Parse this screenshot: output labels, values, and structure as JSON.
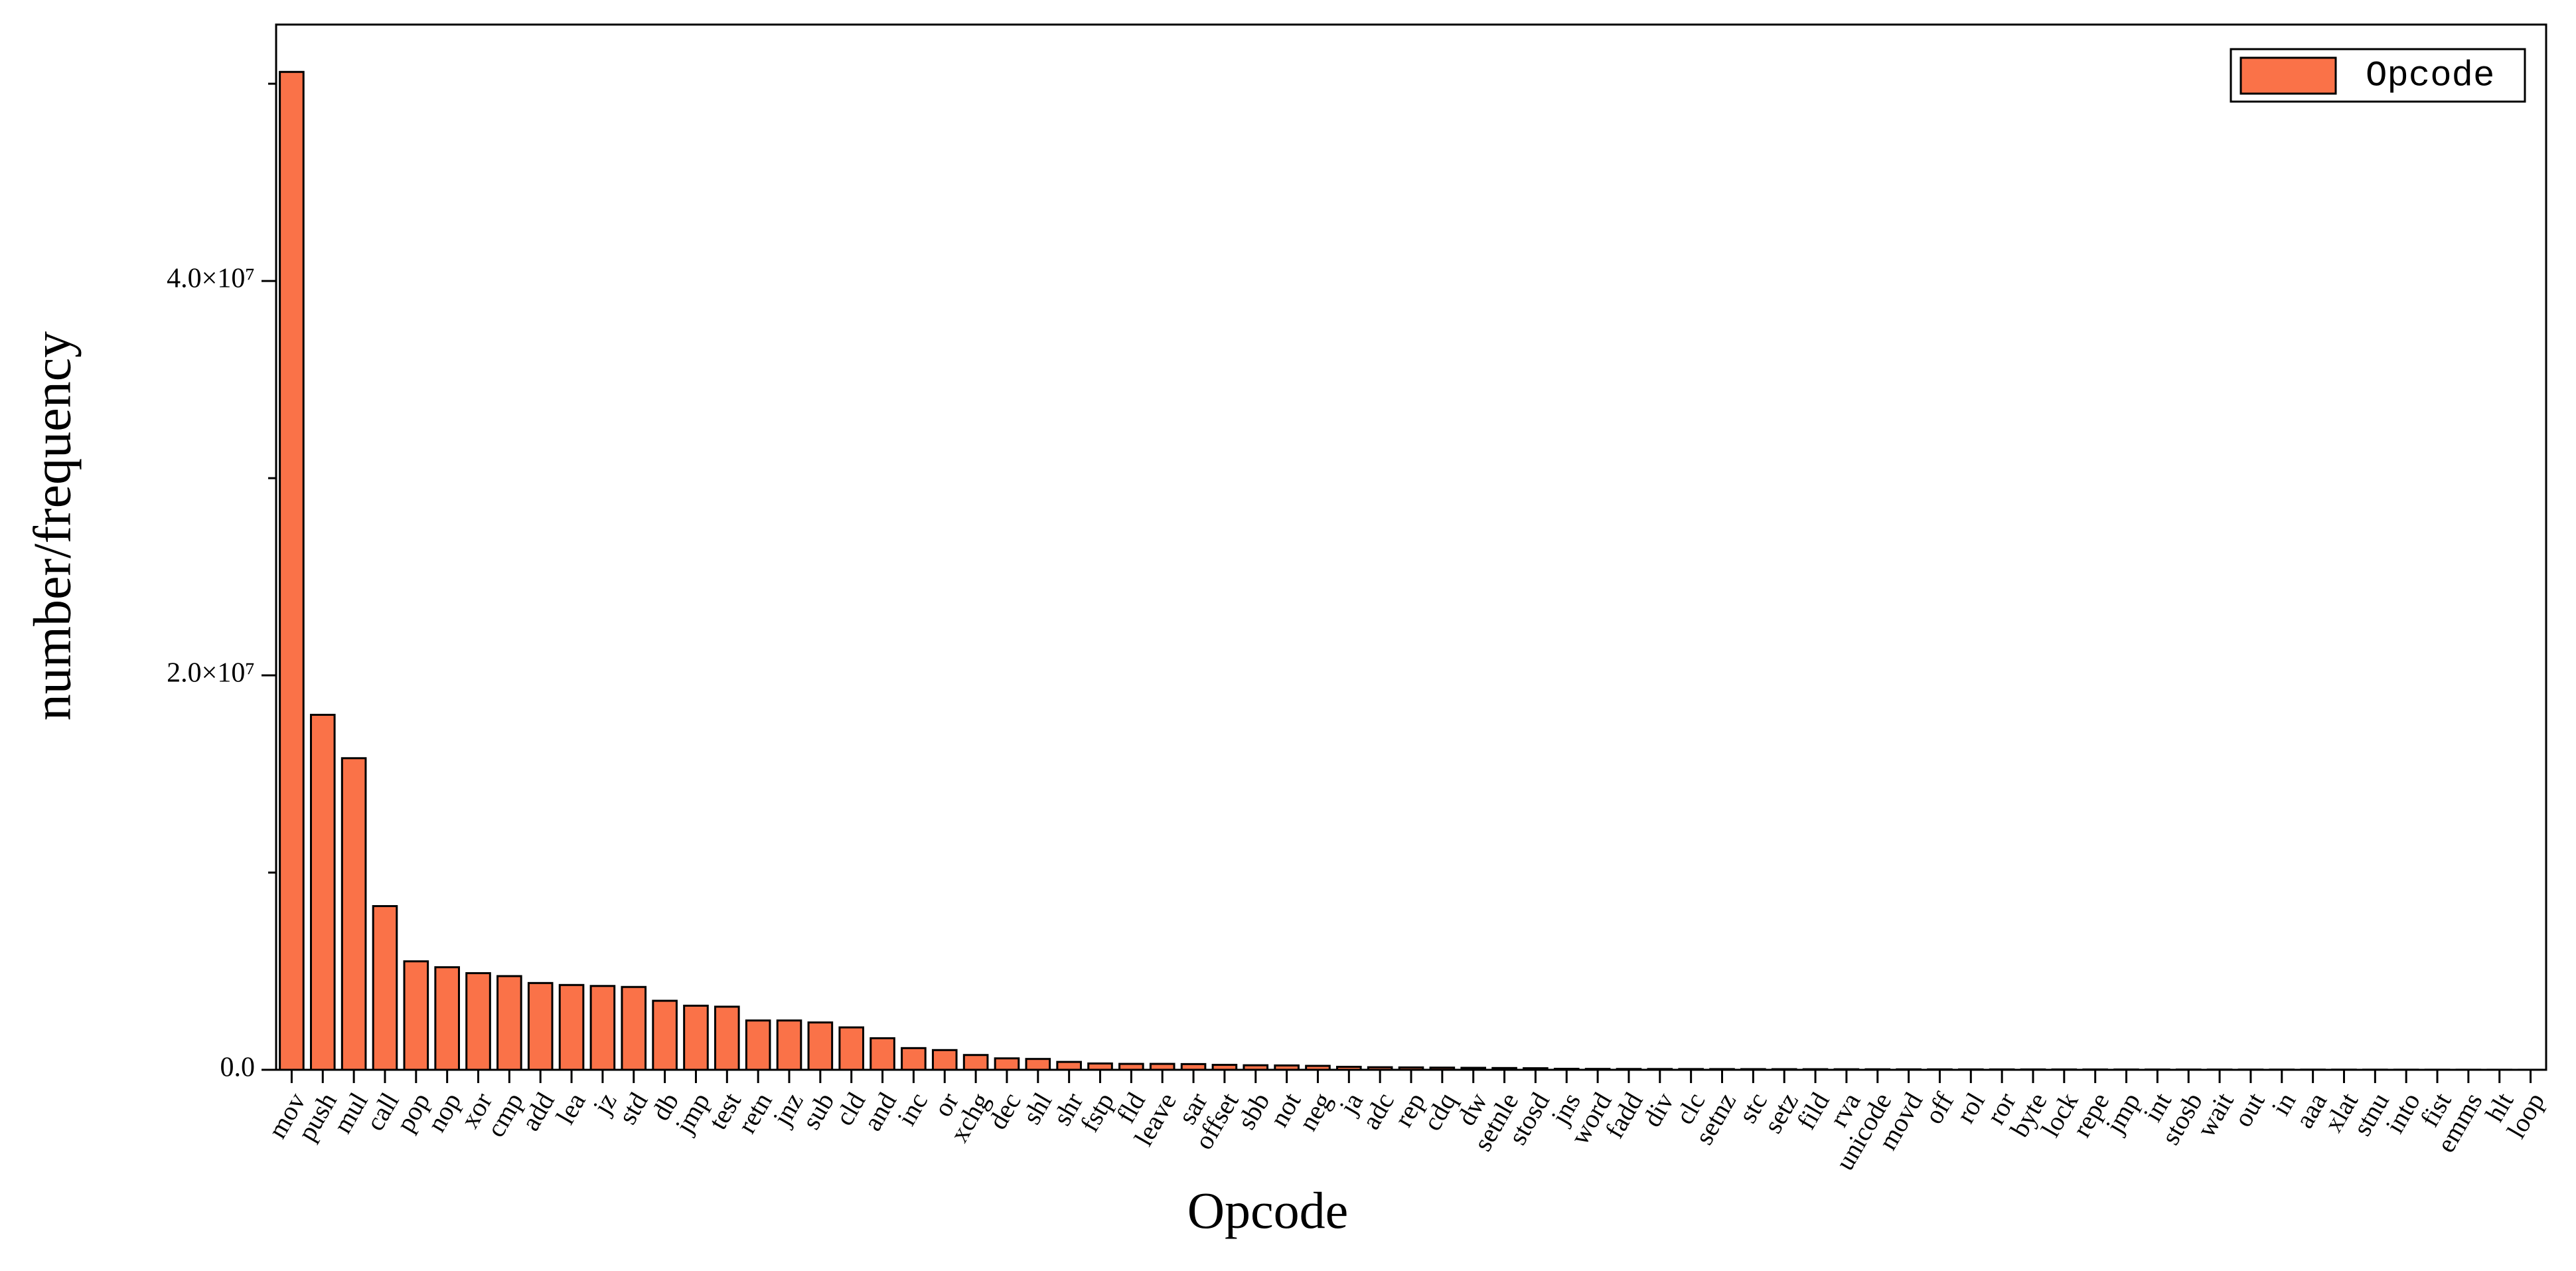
{
  "chart_data": {
    "type": "bar",
    "x_label": "Opcode",
    "y_label": "number/frequency",
    "categories": [
      "mov",
      "push",
      "mul",
      "call",
      "pop",
      "nop",
      "xor",
      "cmp",
      "add",
      "lea",
      "jz",
      "std",
      "db",
      "jmp",
      "test",
      "retn",
      "jnz",
      "sub",
      "cld",
      "and",
      "inc",
      "or",
      "xchg",
      "dec",
      "shl",
      "shr",
      "fstp",
      "fld",
      "leave",
      "sar",
      "offset",
      "sbb",
      "not",
      "neg",
      "ja",
      "adc",
      "rep",
      "cdq",
      "dw",
      "setnle",
      "stosd",
      "jns",
      "word",
      "fadd",
      "div",
      "clc",
      "setnz",
      "stc",
      "setz",
      "fild",
      "rva",
      "unicode",
      "movd",
      "off",
      "rol",
      "ror",
      "byte",
      "lock",
      "repe",
      "jmp",
      "int",
      "stosb",
      "wait",
      "out",
      "in",
      "aaa",
      "xlat",
      "stnu",
      "into",
      "fist",
      "emms",
      "hlt",
      "loop"
    ],
    "series": [
      {
        "name": "Opcode",
        "color": "#fa7248",
        "values": [
          50600000,
          18000000,
          15800000,
          8300000,
          5500000,
          5200000,
          4900000,
          4750000,
          4400000,
          4300000,
          4250000,
          4200000,
          3500000,
          3250000,
          3200000,
          2500000,
          2500000,
          2400000,
          2150000,
          1600000,
          1100000,
          1000000,
          750000,
          580000,
          550000,
          400000,
          320000,
          300000,
          300000,
          290000,
          250000,
          230000,
          220000,
          200000,
          150000,
          130000,
          120000,
          110000,
          100000,
          90000,
          80000,
          50000,
          45000,
          42000,
          40000,
          38000,
          36000,
          34000,
          32000,
          30000,
          28000,
          26000,
          24000,
          22000,
          20000,
          19000,
          18000,
          17000,
          16000,
          15000,
          14000,
          13000,
          12000,
          11000,
          10000,
          9000,
          8000,
          7000,
          6000,
          5000,
          4000,
          3000,
          2000
        ]
      }
    ],
    "ylim": [
      0,
      53000000
    ],
    "yticks": [
      {
        "value": 0,
        "label": "0.0"
      },
      {
        "value": 20000000,
        "label": "2.0×10⁷"
      },
      {
        "value": 40000000,
        "label": "4.0×10⁷"
      }
    ],
    "yminorticks": [
      10000000,
      30000000,
      50000000
    ],
    "legend": "upper right",
    "grid": false
  }
}
